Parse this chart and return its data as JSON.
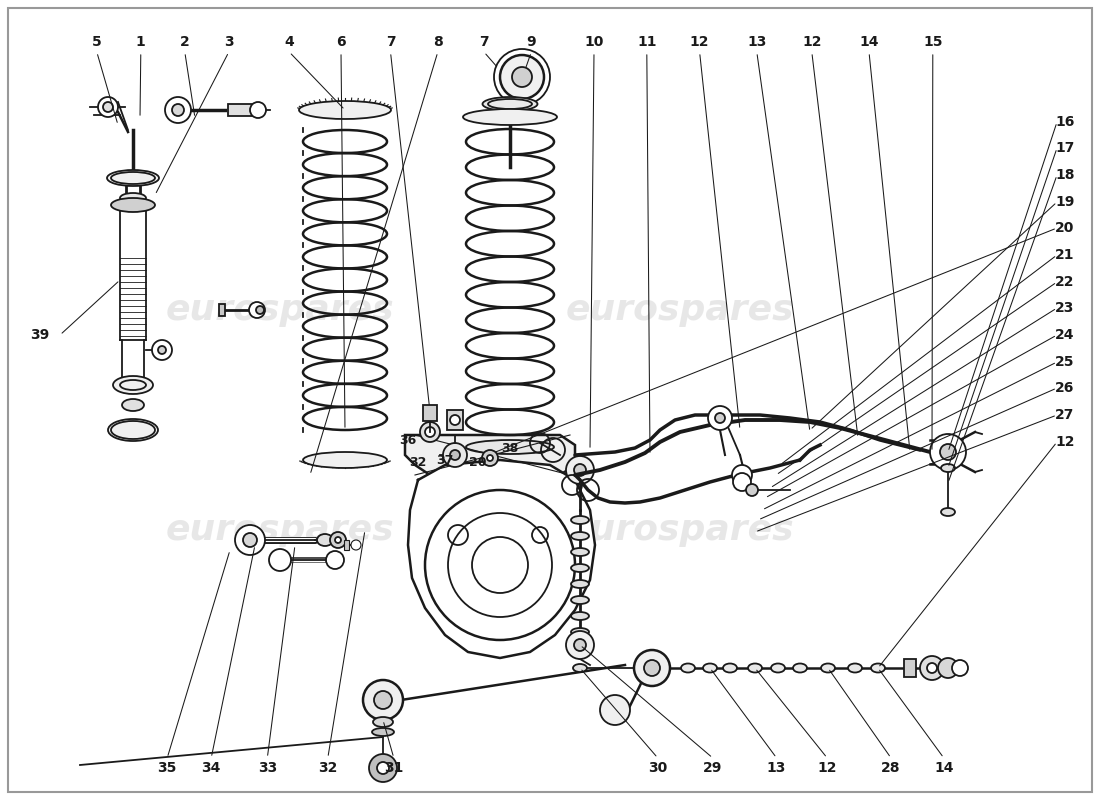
{
  "background_color": "#ffffff",
  "line_color": "#1a1a1a",
  "watermark_color": "#d8d8d8",
  "fig_width": 11.0,
  "fig_height": 8.0,
  "dpi": 100,
  "top_labels": [
    [
      "5",
      0.088
    ],
    [
      "1",
      0.128
    ],
    [
      "2",
      0.168
    ],
    [
      "3",
      0.208
    ],
    [
      "4",
      0.263
    ],
    [
      "6",
      0.31
    ],
    [
      "7",
      0.355
    ],
    [
      "8",
      0.398
    ],
    [
      "7",
      0.44
    ],
    [
      "9",
      0.483
    ],
    [
      "10",
      0.54
    ],
    [
      "11",
      0.588
    ],
    [
      "12",
      0.636
    ],
    [
      "13",
      0.688
    ],
    [
      "12",
      0.738
    ],
    [
      "14",
      0.79
    ],
    [
      "15",
      0.848
    ]
  ],
  "right_labels": [
    [
      "16",
      0.84
    ],
    [
      "17",
      0.815
    ],
    [
      "18",
      0.79
    ],
    [
      "19",
      0.765
    ],
    [
      "20",
      0.738
    ],
    [
      "21",
      0.712
    ],
    [
      "22",
      0.685
    ],
    [
      "23",
      0.658
    ],
    [
      "24",
      0.63
    ],
    [
      "25",
      0.603
    ],
    [
      "26",
      0.576
    ],
    [
      "27",
      0.55
    ],
    [
      "12",
      0.523
    ]
  ],
  "bottom_labels": [
    [
      "35",
      0.152
    ],
    [
      "34",
      0.192
    ],
    [
      "33",
      0.243
    ],
    [
      "32",
      0.298
    ],
    [
      "31",
      0.358
    ],
    [
      "30",
      0.598
    ],
    [
      "29",
      0.648
    ],
    [
      "13",
      0.706
    ],
    [
      "12",
      0.752
    ],
    [
      "28",
      0.81
    ],
    [
      "14",
      0.858
    ]
  ],
  "left_label": [
    "39",
    0.04,
    0.66
  ]
}
